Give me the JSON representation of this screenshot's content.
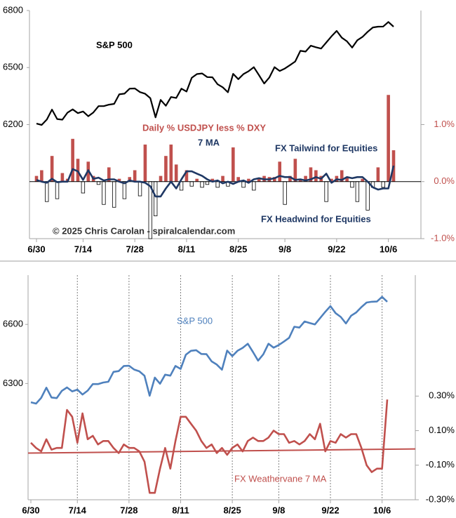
{
  "chart_data": [
    {
      "type": "combo",
      "categories": [
        "6/30",
        null,
        null,
        null,
        null,
        null,
        null,
        null,
        null,
        "7/14",
        null,
        null,
        null,
        null,
        null,
        null,
        null,
        null,
        null,
        "7/28",
        null,
        null,
        null,
        null,
        null,
        null,
        null,
        null,
        null,
        "8/11",
        null,
        null,
        null,
        null,
        null,
        null,
        null,
        null,
        null,
        "8/25",
        null,
        null,
        null,
        null,
        null,
        null,
        null,
        null,
        "9/8",
        null,
        null,
        null,
        null,
        null,
        null,
        null,
        null,
        null,
        "9/22",
        null,
        null,
        null,
        null,
        null,
        null,
        null,
        null,
        null,
        "10/6",
        null
      ],
      "ylim": [
        5600,
        6800
      ],
      "yticks": [
        6200,
        6500,
        6800
      ],
      "y2lim": [
        -1,
        3
      ],
      "y2ticks": [
        {
          "value": 1,
          "label": "1.0%"
        },
        {
          "value": 0,
          "label": "0.0%"
        },
        {
          "value": -1,
          "label": "-1.0%"
        }
      ],
      "y2_tick_color": "#c0504d",
      "series": [
        {
          "name": "S&P 500",
          "type": "line",
          "color": "#000000",
          "values": [
            6205,
            6198,
            6227,
            6279,
            6229,
            6226,
            6263,
            6280,
            6260,
            6269,
            6244,
            6264,
            6297,
            6297,
            6305,
            6309,
            6359,
            6363,
            6389,
            6390,
            6371,
            6362,
            6339,
            6238,
            6330,
            6299,
            6345,
            6340,
            6389,
            6374,
            6446,
            6466,
            6469,
            6450,
            6449,
            6412,
            6396,
            6370,
            6467,
            6439,
            6466,
            6481,
            6502,
            6460,
            6416,
            6448,
            6502,
            6482,
            6495,
            6513,
            6532,
            6588,
            6584,
            6615,
            6607,
            6600,
            6632,
            6664,
            6693,
            6657,
            6638,
            6605,
            6644,
            6661,
            6688,
            6711,
            6715,
            6716,
            6740,
            6715
          ]
        },
        {
          "name": "Daily % USDJPY less % DXY",
          "type": "bar",
          "axis": "y2",
          "color": "#c0504d",
          "negative_color": "#ffffff",
          "values": [
            0.1,
            0.2,
            -0.35,
            0.45,
            -0.3,
            0.15,
            0.05,
            0.75,
            0.4,
            -0.2,
            0.35,
            0.1,
            -0.05,
            -0.4,
            0.25,
            -0.45,
            0.05,
            -0.3,
            0.08,
            0.2,
            -0.25,
            0.65,
            -1.0,
            -0.6,
            0.1,
            0.45,
            0.65,
            0.3,
            -0.15,
            0.2,
            -0.08,
            0.05,
            -0.1,
            -0.05,
            0.05,
            -0.1,
            0.1,
            -0.08,
            0.6,
            0.08,
            -0.1,
            0.05,
            -0.15,
            0.05,
            0.1,
            0.08,
            0.08,
            0.35,
            -0.4,
            0.1,
            0.4,
            0.05,
            0.1,
            0.25,
            0.2,
            0.1,
            -0.35,
            0.05,
            0.1,
            0.2,
            0.08,
            -0.1,
            -0.35,
            0.05,
            -0.5,
            -0.1,
            0.25,
            -0.1,
            1.52,
            0.55
          ]
        },
        {
          "name": "7 MA",
          "type": "line",
          "axis": "y2",
          "color": "#1f3864",
          "values": [
            0.03,
            0.0,
            -0.02,
            0.05,
            -0.01,
            0.0,
            0.0,
            0.22,
            0.18,
            0.03,
            0.2,
            0.05,
            0.07,
            0.02,
            0.04,
            0.04,
            0.0,
            -0.03,
            0.02,
            0.0,
            0.0,
            -0.02,
            -0.08,
            -0.26,
            -0.26,
            -0.12,
            0.0,
            -0.12,
            0.04,
            0.18,
            0.18,
            0.14,
            0.1,
            0.04,
            0.0,
            0.02,
            -0.03,
            0.0,
            -0.04,
            0.0,
            0.02,
            -0.02,
            0.04,
            0.06,
            0.04,
            0.04,
            0.06,
            0.1,
            0.08,
            0.08,
            0.03,
            0.04,
            0.02,
            0.04,
            0.08,
            0.05,
            0.14,
            -0.02,
            0.04,
            0.03,
            0.08,
            0.06,
            0.08,
            0.08,
            0.0,
            -0.1,
            -0.14,
            -0.12,
            -0.12,
            0.28
          ]
        }
      ],
      "annotations": [
        "FX Tailwind for Equities",
        "FX Headwind for Equities",
        "© 2025 Chris Carolan - spiralcalendar.com"
      ]
    },
    {
      "type": "line",
      "categories": [
        "6/30",
        null,
        null,
        null,
        null,
        null,
        null,
        null,
        null,
        "7/14",
        null,
        null,
        null,
        null,
        null,
        null,
        null,
        null,
        null,
        "7/28",
        null,
        null,
        null,
        null,
        null,
        null,
        null,
        null,
        null,
        "8/11",
        null,
        null,
        null,
        null,
        null,
        null,
        null,
        null,
        null,
        "8/25",
        null,
        null,
        null,
        null,
        null,
        null,
        null,
        null,
        "9/8",
        null,
        null,
        null,
        null,
        null,
        null,
        null,
        null,
        null,
        "9/22",
        null,
        null,
        null,
        null,
        null,
        null,
        null,
        null,
        null,
        "10/6",
        null
      ],
      "ylim": [
        5710,
        6850
      ],
      "yticks": [
        6300,
        6600
      ],
      "y2lim": [
        -0.3,
        1.0
      ],
      "y2ticks": [
        {
          "value": 0.3,
          "label": "0.30%"
        },
        {
          "value": 0.1,
          "label": "0.10%"
        },
        {
          "value": -0.1,
          "label": "-0.10%"
        },
        {
          "value": -0.3,
          "label": "-0.30%"
        }
      ],
      "y2_tick_color": "#000000",
      "x_grid": true,
      "series": [
        {
          "name": "S&P 500",
          "type": "line",
          "color": "#4f81bd",
          "values": [
            6205,
            6198,
            6227,
            6279,
            6229,
            6226,
            6263,
            6280,
            6260,
            6269,
            6244,
            6264,
            6297,
            6297,
            6305,
            6309,
            6359,
            6363,
            6389,
            6390,
            6371,
            6362,
            6339,
            6238,
            6330,
            6299,
            6345,
            6340,
            6389,
            6374,
            6446,
            6466,
            6469,
            6450,
            6449,
            6412,
            6396,
            6370,
            6467,
            6439,
            6466,
            6481,
            6502,
            6460,
            6416,
            6448,
            6502,
            6482,
            6495,
            6513,
            6532,
            6588,
            6584,
            6615,
            6607,
            6600,
            6632,
            6664,
            6693,
            6657,
            6638,
            6605,
            6644,
            6661,
            6688,
            6711,
            6715,
            6716,
            6740,
            6715
          ]
        },
        {
          "name": "FX Weathervane 7 MA",
          "type": "line",
          "axis": "y2",
          "color": "#c0504d",
          "values": [
            0.03,
            0.0,
            -0.02,
            0.05,
            -0.01,
            0.0,
            0.0,
            0.22,
            0.18,
            0.03,
            0.2,
            0.05,
            0.07,
            0.02,
            0.04,
            0.04,
            0.0,
            -0.03,
            0.02,
            0.0,
            0.0,
            -0.02,
            -0.08,
            -0.26,
            -0.26,
            -0.12,
            0.0,
            -0.12,
            0.04,
            0.18,
            0.18,
            0.14,
            0.1,
            0.04,
            0.0,
            0.02,
            -0.03,
            0.0,
            -0.04,
            0.0,
            0.02,
            -0.02,
            0.04,
            0.06,
            0.04,
            0.04,
            0.06,
            0.1,
            0.08,
            0.08,
            0.03,
            0.04,
            0.02,
            0.04,
            0.08,
            0.05,
            0.14,
            -0.02,
            0.04,
            0.03,
            0.08,
            0.06,
            0.08,
            0.08,
            0.0,
            -0.1,
            -0.14,
            -0.12,
            -0.12,
            0.28
          ]
        }
      ],
      "trendline": {
        "axis": "y2",
        "color": "#c0504d",
        "start": -0.03,
        "end": -0.006
      }
    }
  ]
}
